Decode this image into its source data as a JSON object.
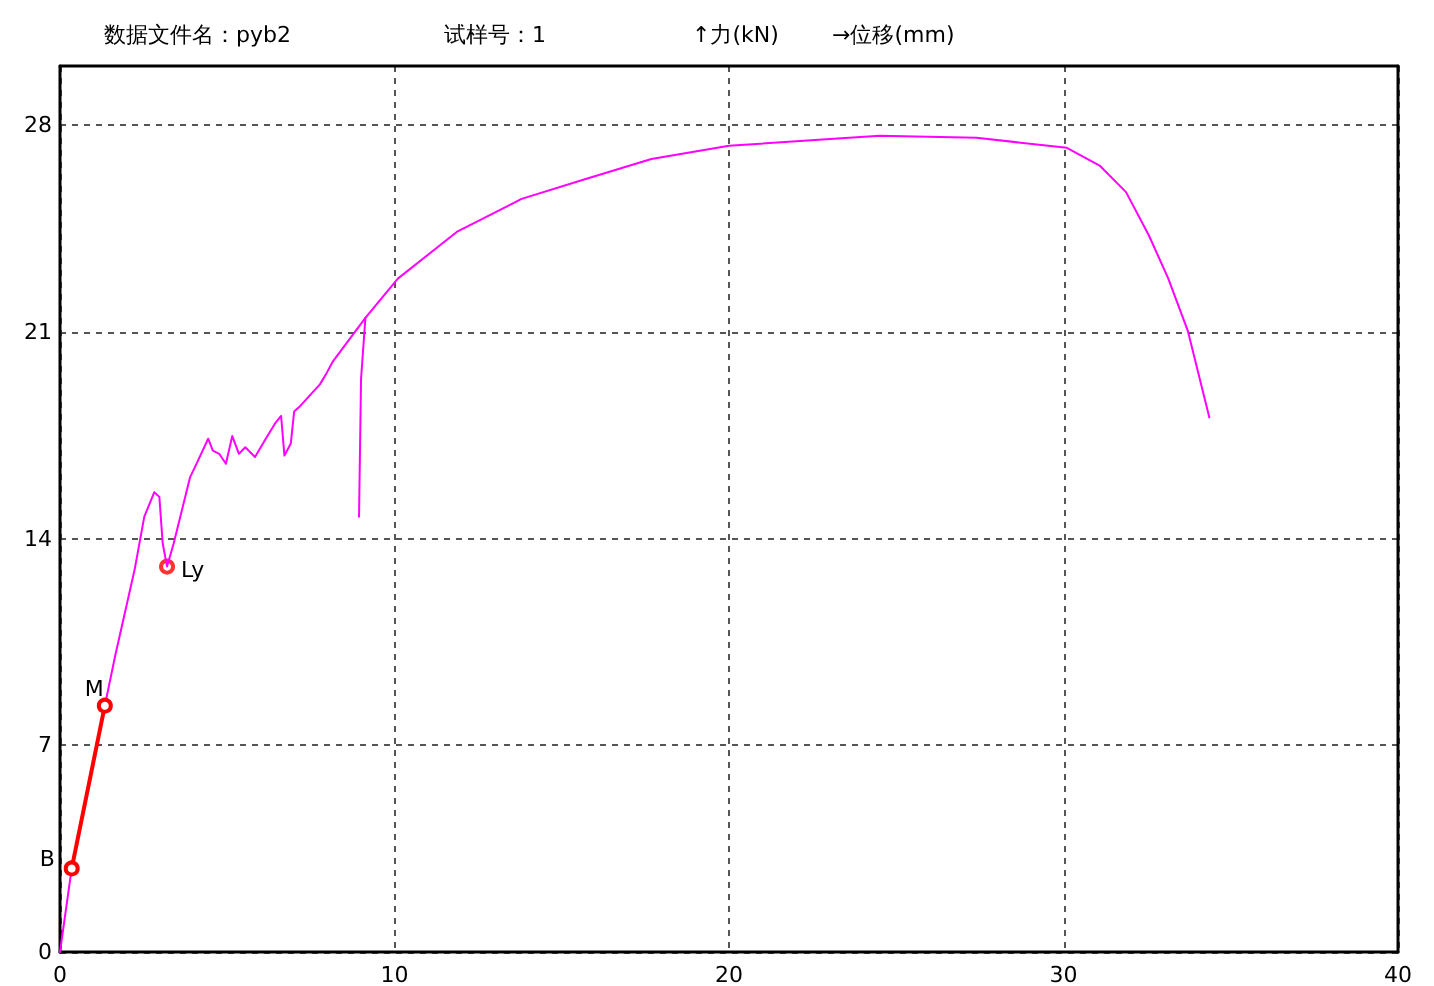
{
  "chart_data": {
    "type": "line",
    "title": "数据文件名：pyb2",
    "subtitle": "试样号：1",
    "ylabel": "↑力(kN)",
    "xlabel": "→位移(mm)",
    "xlim": [
      0,
      40
    ],
    "xticks": [
      0,
      10,
      20,
      30,
      40
    ],
    "ylim": [
      0,
      30
    ],
    "yticks": [
      0,
      7,
      14,
      21,
      28
    ],
    "grid": true,
    "series": [
      {
        "color": "#ff00ff",
        "marker": "none",
        "x": [
          0,
          0.35,
          1.34,
          1.65,
          2.23,
          2.52,
          2.82,
          2.97,
          3.07,
          3.2,
          3.4,
          3.89,
          4.08,
          4.43,
          4.57,
          4.76,
          4.96,
          5.15,
          5.35,
          5.54,
          5.83,
          6.12,
          6.42,
          6.61,
          6.71,
          6.9,
          7.0,
          7.15,
          7.77,
          7.97,
          8.16,
          9.13,
          10.1,
          11.86,
          13.8,
          15.74,
          17.68,
          20.0,
          24.5,
          27.4,
          30.1,
          31.08,
          31.87,
          32.55,
          33.13,
          33.72,
          34.36
        ],
        "values": [
          0,
          2.83,
          8.34,
          10.03,
          12.94,
          14.74,
          15.57,
          15.41,
          13.84,
          13.05,
          13.84,
          16.08,
          16.53,
          17.38,
          16.98,
          16.87,
          16.53,
          17.47,
          16.87,
          17.09,
          16.76,
          17.32,
          17.88,
          18.15,
          16.81,
          17.22,
          18.3,
          18.45,
          19.22,
          19.6,
          20.0,
          21.47,
          22.8,
          24.38,
          25.5,
          26.18,
          26.85,
          27.3,
          27.64,
          27.57,
          27.23,
          26.63,
          25.73,
          24.27,
          22.81,
          21.02,
          18.1
        ]
      },
      {
        "color": "#ff00ff",
        "marker": "none",
        "x": [
          8.94,
          9.0,
          9.13
        ],
        "values": [
          14.74,
          19.4,
          21.47
        ]
      },
      {
        "color": "#ff0000",
        "marker": "circle",
        "x": [
          0.35,
          1.34
        ],
        "values": [
          2.83,
          8.34
        ]
      },
      {
        "type": "scatter",
        "color": "#ff0000",
        "marker": "circle",
        "x": [
          3.2
        ],
        "values": [
          13.05
        ]
      }
    ],
    "annotations": [
      {
        "text": "B",
        "x": 0.35,
        "y": 2.83
      },
      {
        "text": "M",
        "x": 1.34,
        "y": 8.34
      },
      {
        "text": "Ly",
        "x": 3.2,
        "y": 13.05
      }
    ]
  }
}
